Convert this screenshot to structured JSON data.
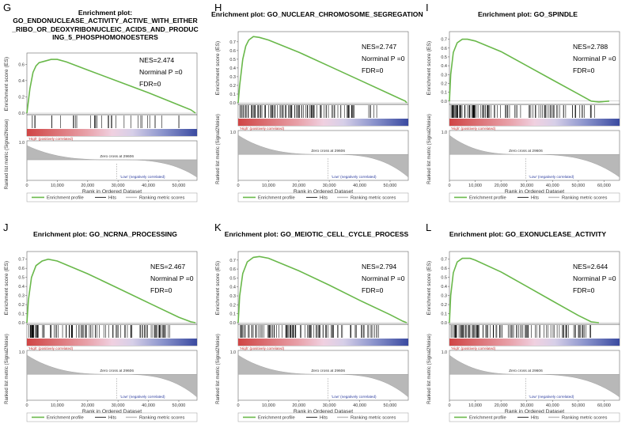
{
  "common": {
    "es_ylabel": "Enrichment score (ES)",
    "rank_ylabel": "Ranked list metric (Signal2Noise)",
    "xlabel": "Rank in Ordered Dataset",
    "pos_label": "'High' (positively correlated)",
    "neg_label": "'Low' (negatively correlated)",
    "zero_cross": "Zero cross at 29606",
    "legend": [
      "Enrichment profile",
      "Hits",
      "Ranking metric scores"
    ],
    "stat_prefix_nes": "NES=",
    "stat_pval": "Norminal P =0",
    "stat_fdr": "FDR=0",
    "rank_tick_label": "1.0",
    "colors": {
      "profile": "#69b84a",
      "pos": "#d04545",
      "neg": "#3a4aa0",
      "metric": "#b8b8b8",
      "axis": "#666666"
    }
  },
  "chart_data": [
    {
      "panel": "G",
      "type": "line",
      "title_lines": [
        "Enrichment plot:",
        "GO_ENDONUCLEASE_ACTIVITY_ACTIVE_WITH_EITHER",
        "_RIBO_OR_DEOXYRIBONUCLEIC_ACIDS_AND_PRODUC",
        "ING_5_PHOSPHOMONOESTERS"
      ],
      "nes": "2.474",
      "es_yticks": [
        "0.6",
        "0.4",
        "0.2",
        "0.0"
      ],
      "es_ylim": [
        0,
        0.7
      ],
      "x_ticks": [
        "0",
        "10,000",
        "20,000",
        "30,000",
        "40,000",
        "50,000"
      ],
      "xlim": [
        0,
        56000
      ],
      "zero_cross_rank": 29606,
      "profile": [
        [
          0,
          0
        ],
        [
          1000,
          0.3
        ],
        [
          2000,
          0.5
        ],
        [
          3000,
          0.58
        ],
        [
          4000,
          0.62
        ],
        [
          6000,
          0.64
        ],
        [
          8000,
          0.66
        ],
        [
          10000,
          0.66
        ],
        [
          13000,
          0.63
        ],
        [
          20000,
          0.53
        ],
        [
          30000,
          0.39
        ],
        [
          40000,
          0.25
        ],
        [
          50000,
          0.1
        ],
        [
          54000,
          0.04
        ],
        [
          55500,
          0
        ]
      ]
    },
    {
      "panel": "H",
      "type": "line",
      "title_lines": [
        "Enrichment plot: GO_NUCLEAR_CHROMOSOME_SEGREGATION"
      ],
      "nes": "2.747",
      "es_yticks": [
        "0.7",
        "0.6",
        "0.5",
        "0.4",
        "0.3",
        "0.2",
        "0.1",
        "0.0"
      ],
      "es_ylim": [
        0,
        0.78
      ],
      "x_ticks": [
        "0",
        "10,000",
        "20,000",
        "30,000",
        "40,000",
        "50,000"
      ],
      "xlim": [
        0,
        56000
      ],
      "zero_cross_rank": 29606,
      "profile": [
        [
          0,
          0
        ],
        [
          500,
          0.2
        ],
        [
          1500,
          0.5
        ],
        [
          2500,
          0.65
        ],
        [
          3500,
          0.72
        ],
        [
          5000,
          0.76
        ],
        [
          7000,
          0.75
        ],
        [
          10000,
          0.72
        ],
        [
          20000,
          0.58
        ],
        [
          30000,
          0.42
        ],
        [
          40000,
          0.26
        ],
        [
          50000,
          0.1
        ],
        [
          55000,
          0.02
        ],
        [
          55500,
          0
        ]
      ]
    },
    {
      "panel": "I",
      "type": "line",
      "title_lines": [
        "Enrichment plot: GO_SPINDLE"
      ],
      "nes": "2.788",
      "es_yticks": [
        "0.7",
        "0.6",
        "0.5",
        "0.4",
        "0.3",
        "0.2",
        "0.1",
        "0.0"
      ],
      "es_ylim": [
        -0.02,
        0.75
      ],
      "x_ticks": [
        "0",
        "10,000",
        "20,000",
        "30,000",
        "40,000",
        "50,000",
        "60,000"
      ],
      "xlim": [
        0,
        66000
      ],
      "zero_cross_rank": 29606,
      "profile": [
        [
          0,
          0
        ],
        [
          500,
          0.3
        ],
        [
          1500,
          0.55
        ],
        [
          3000,
          0.66
        ],
        [
          5000,
          0.7
        ],
        [
          7000,
          0.7
        ],
        [
          10000,
          0.68
        ],
        [
          20000,
          0.56
        ],
        [
          30000,
          0.4
        ],
        [
          40000,
          0.24
        ],
        [
          50000,
          0.08
        ],
        [
          55000,
          0
        ],
        [
          58000,
          -0.01
        ],
        [
          62000,
          0
        ]
      ]
    },
    {
      "panel": "J",
      "type": "line",
      "title_lines": [
        "Enrichment plot: GO_NCRNA_PROCESSING"
      ],
      "nes": "2.467",
      "es_yticks": [
        "0.7",
        "0.6",
        "0.5",
        "0.4",
        "0.3",
        "0.2",
        "0.1",
        "0.0"
      ],
      "es_ylim": [
        0,
        0.75
      ],
      "x_ticks": [
        "0",
        "10,000",
        "20,000",
        "30,000",
        "40,000",
        "50,000"
      ],
      "xlim": [
        0,
        56000
      ],
      "zero_cross_rank": 29606,
      "profile": [
        [
          0,
          0
        ],
        [
          500,
          0.25
        ],
        [
          1500,
          0.5
        ],
        [
          3000,
          0.63
        ],
        [
          5000,
          0.68
        ],
        [
          7000,
          0.7
        ],
        [
          10000,
          0.68
        ],
        [
          20000,
          0.54
        ],
        [
          30000,
          0.38
        ],
        [
          40000,
          0.22
        ],
        [
          50000,
          0.06
        ],
        [
          54000,
          0.01
        ],
        [
          55500,
          0
        ]
      ]
    },
    {
      "panel": "K",
      "type": "line",
      "title_lines": [
        "Enrichment plot: GO_MEIOTIC_CELL_CYCLE_PROCESS"
      ],
      "nes": "2.794",
      "es_yticks": [
        "0.7",
        "0.6",
        "0.5",
        "0.4",
        "0.3",
        "0.2",
        "0.1",
        "0.0"
      ],
      "es_ylim": [
        0,
        0.76
      ],
      "x_ticks": [
        "0",
        "10,000",
        "20,000",
        "30,000",
        "40,000",
        "50,000"
      ],
      "xlim": [
        0,
        56000
      ],
      "zero_cross_rank": 29606,
      "profile": [
        [
          0,
          0
        ],
        [
          500,
          0.3
        ],
        [
          1500,
          0.55
        ],
        [
          3000,
          0.68
        ],
        [
          5000,
          0.73
        ],
        [
          7000,
          0.74
        ],
        [
          10000,
          0.72
        ],
        [
          20000,
          0.58
        ],
        [
          30000,
          0.42
        ],
        [
          40000,
          0.25
        ],
        [
          50000,
          0.09
        ],
        [
          54000,
          0.02
        ],
        [
          55500,
          0
        ]
      ]
    },
    {
      "panel": "L",
      "type": "line",
      "title_lines": [
        "Enrichment plot: GO_EXONUCLEASE_ACTIVITY"
      ],
      "nes": "2.644",
      "es_yticks": [
        "0.7",
        "0.6",
        "0.5",
        "0.4",
        "0.3",
        "0.2",
        "0.1",
        "0.0"
      ],
      "es_ylim": [
        0,
        0.75
      ],
      "x_ticks": [
        "0",
        "10,000",
        "20,000",
        "30,000",
        "40,000",
        "50,000",
        "60,000"
      ],
      "xlim": [
        0,
        66000
      ],
      "zero_cross_rank": 29606,
      "profile": [
        [
          0,
          0
        ],
        [
          500,
          0.3
        ],
        [
          1500,
          0.55
        ],
        [
          3000,
          0.67
        ],
        [
          5000,
          0.71
        ],
        [
          8000,
          0.71
        ],
        [
          10000,
          0.69
        ],
        [
          20000,
          0.56
        ],
        [
          30000,
          0.4
        ],
        [
          40000,
          0.24
        ],
        [
          50000,
          0.08
        ],
        [
          55000,
          0.01
        ],
        [
          58000,
          0
        ]
      ]
    }
  ]
}
